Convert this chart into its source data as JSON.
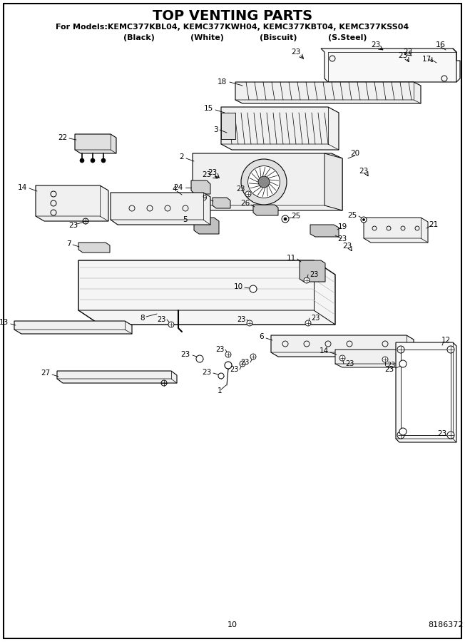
{
  "title": "TOP VENTING PARTS",
  "subtitle": "For Models:KEMC377KBL04, KEMC377KWH04, KEMC377KBT04, KEMC377KSS04",
  "subtitle2": "        (Black)              (White)              (Biscuit)            (S.Steel)",
  "page_number": "10",
  "part_number": "8186372",
  "bg_color": "#ffffff",
  "fig_width": 6.52,
  "fig_height": 9.0,
  "dpi": 100
}
